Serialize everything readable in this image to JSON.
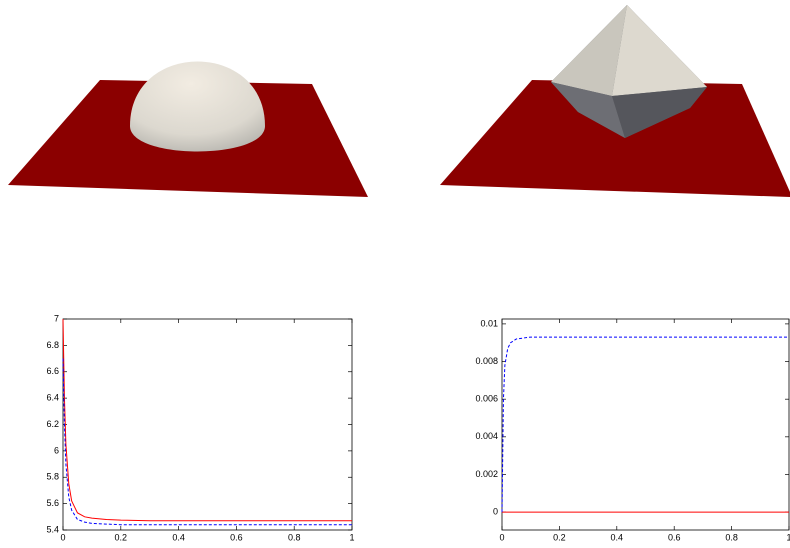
{
  "chart_data": [
    {
      "type": "line",
      "x": [
        0,
        0.005,
        0.01,
        0.02,
        0.03,
        0.05,
        0.075,
        0.1,
        0.15,
        0.2,
        0.3,
        0.4,
        0.6,
        0.8,
        1
      ],
      "series": [
        {
          "color": "#ff0000",
          "dash": false,
          "values": [
            7,
            6.4,
            6.05,
            5.75,
            5.62,
            5.53,
            5.5,
            5.49,
            5.48,
            5.475,
            5.47,
            5.47,
            5.47,
            5.47,
            5.47
          ]
        },
        {
          "color": "#0000ff",
          "dash": true,
          "values": [
            6.7,
            6.2,
            5.9,
            5.65,
            5.55,
            5.48,
            5.46,
            5.45,
            5.445,
            5.44,
            5.44,
            5.44,
            5.44,
            5.44,
            5.44
          ]
        }
      ],
      "xlim": [
        0,
        1
      ],
      "xticks": [
        0,
        0.2,
        0.4,
        0.6,
        0.8,
        1
      ],
      "ylim": [
        5.4,
        7
      ],
      "yticks": [
        5.4,
        5.6,
        5.8,
        6,
        6.2,
        6.4,
        6.6,
        6.8,
        7
      ],
      "grid": false
    },
    {
      "type": "line",
      "x": [
        0,
        0.005,
        0.01,
        0.02,
        0.03,
        0.05,
        0.075,
        0.1,
        0.15,
        0.2,
        0.3,
        0.4,
        0.6,
        0.8,
        1
      ],
      "series": [
        {
          "color": "#ff0000",
          "dash": false,
          "values": [
            0,
            0,
            0,
            0,
            0,
            0,
            0,
            0,
            0,
            0,
            0,
            0,
            0,
            0,
            0
          ]
        },
        {
          "color": "#0000ff",
          "dash": true,
          "values": [
            0,
            0.006,
            0.0078,
            0.0087,
            0.009,
            0.0092,
            0.00925,
            0.0093,
            0.0093,
            0.0093,
            0.0093,
            0.0093,
            0.0093,
            0.0093,
            0.0093
          ]
        }
      ],
      "xlim": [
        0,
        1
      ],
      "xticks": [
        0,
        0.2,
        0.4,
        0.6,
        0.8,
        1
      ],
      "ylim": [
        -0.00095,
        0.01026
      ],
      "yticks": [
        0,
        0.002,
        0.004,
        0.006,
        0.008,
        0.01
      ],
      "grid": false
    }
  ]
}
